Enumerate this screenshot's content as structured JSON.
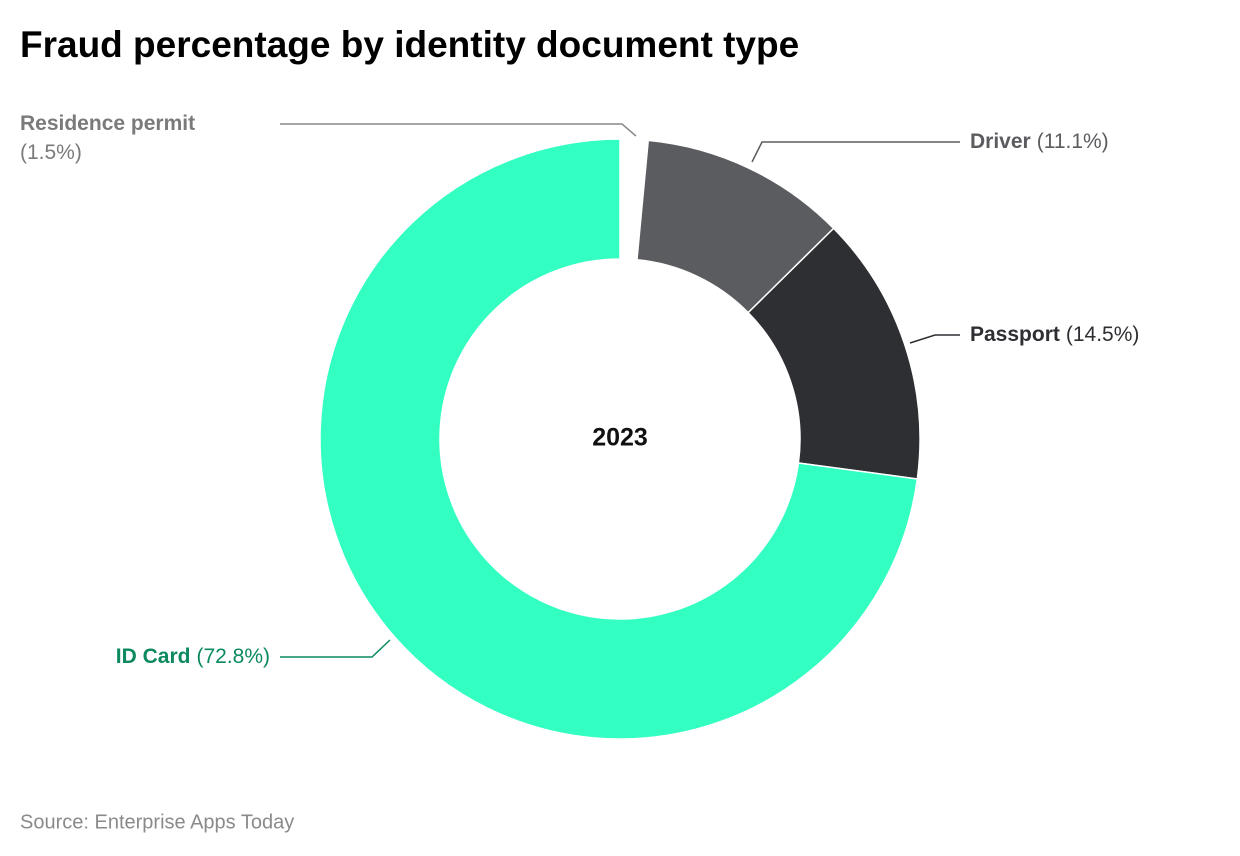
{
  "chart_data": {
    "type": "donut",
    "title": "Fraud percentage by identity document type",
    "center_label": "2023",
    "categories": [
      "Residence permit",
      "Driver",
      "Passport",
      "ID Card"
    ],
    "values": [
      1.5,
      11.1,
      14.5,
      72.8
    ],
    "value_labels": [
      "(1.5%)",
      "(11.1%)",
      "(14.5%)",
      "(72.8%)"
    ],
    "colors": [
      "#ffffff",
      "#5b5c60",
      "#2e2f33",
      "#33ffc2"
    ],
    "label_colors": [
      "#7a7a7a",
      "#5b5c60",
      "#2e2f33",
      "#0c8a5e"
    ],
    "source": "Source: Enterprise Apps Today"
  }
}
